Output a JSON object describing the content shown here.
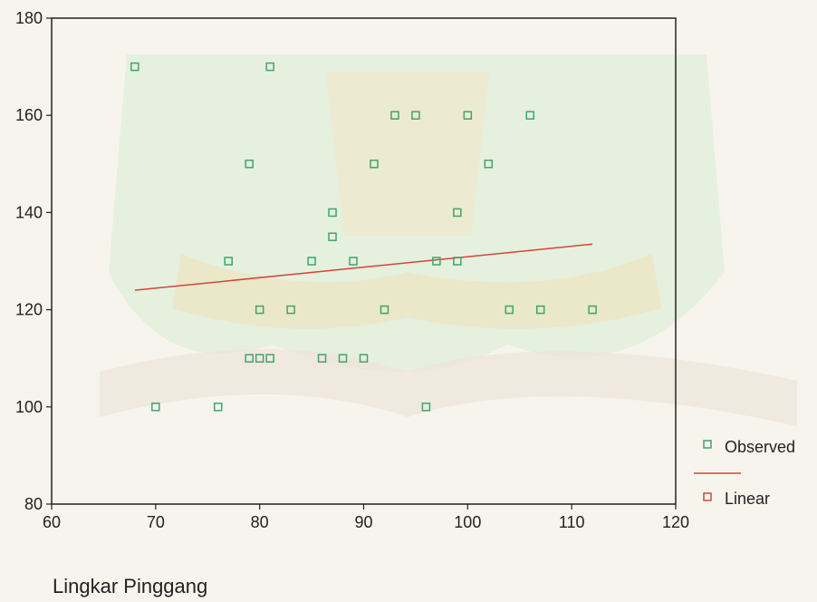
{
  "chart_data": {
    "type": "scatter",
    "xlabel": "Lingkar Pinggang",
    "ylabel": "",
    "xlim": [
      60,
      120
    ],
    "ylim": [
      80,
      180
    ],
    "xticks": [
      "60",
      "70",
      "80",
      "90",
      "100",
      "110",
      "120"
    ],
    "yticks": [
      "80",
      "100",
      "120",
      "140",
      "160",
      "180"
    ],
    "series": [
      {
        "name": "Observed",
        "type": "scatter",
        "color": "#3fa66b",
        "points": [
          [
            68,
            170
          ],
          [
            81,
            170
          ],
          [
            93,
            160
          ],
          [
            95,
            160
          ],
          [
            100,
            160
          ],
          [
            106,
            160
          ],
          [
            79,
            150
          ],
          [
            91,
            150
          ],
          [
            102,
            150
          ],
          [
            87,
            140
          ],
          [
            99,
            140
          ],
          [
            87,
            135
          ],
          [
            77,
            130
          ],
          [
            85,
            130
          ],
          [
            89,
            130
          ],
          [
            97,
            130
          ],
          [
            99,
            130
          ],
          [
            80,
            120
          ],
          [
            83,
            120
          ],
          [
            92,
            120
          ],
          [
            104,
            120
          ],
          [
            107,
            120
          ],
          [
            112,
            120
          ],
          [
            79,
            110
          ],
          [
            80,
            110
          ],
          [
            81,
            110
          ],
          [
            86,
            110
          ],
          [
            88,
            110
          ],
          [
            90,
            110
          ],
          [
            70,
            100
          ],
          [
            76,
            100
          ],
          [
            96,
            100
          ]
        ]
      },
      {
        "name": "Linear",
        "type": "line",
        "color": "#d4453a",
        "points": [
          [
            68,
            124
          ],
          [
            112,
            133.5
          ]
        ]
      }
    ],
    "legend": {
      "position": "bottom-right",
      "entries": [
        "Observed",
        "Linear"
      ]
    },
    "grid": false
  }
}
